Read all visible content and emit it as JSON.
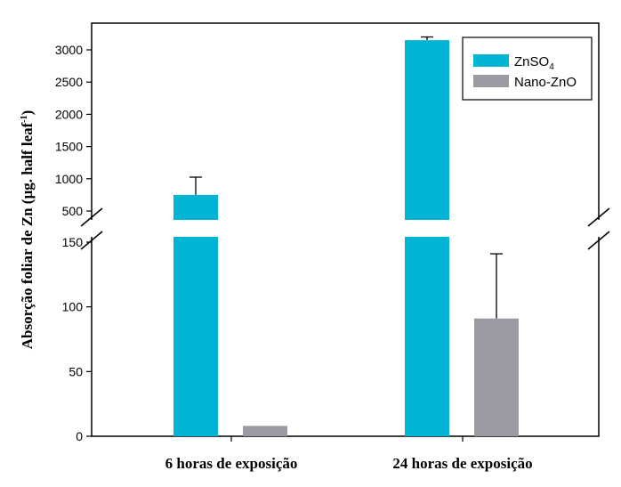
{
  "chart_data": {
    "type": "bar",
    "title": "",
    "xlabel": "",
    "ylabel": "Absorção foliar de Zn (µg. half leaf⁻¹)",
    "ylabel_main": "Absorção foliar de Zn (µg. half leaf",
    "ylabel_sup": "-1",
    "ylabel_close": ")",
    "categories": [
      "6 horas de exposição",
      "24 horas de exposição"
    ],
    "series": [
      {
        "name": "ZnSO4",
        "name_main": "ZnSO",
        "name_sub": "4",
        "color": "#00b4d4",
        "values": [
          750,
          3150
        ],
        "errors": [
          275,
          50
        ]
      },
      {
        "name": "Nano-ZnO",
        "color": "#9a9aa2",
        "values": [
          8,
          91
        ],
        "errors": [
          0,
          50
        ]
      }
    ],
    "y_axis_broken": true,
    "y_lower_range": [
      0,
      150
    ],
    "y_upper_range": [
      500,
      3200
    ],
    "y_lower_ticks": [
      0,
      50,
      100,
      150
    ],
    "y_upper_ticks": [
      500,
      1000,
      1500,
      2000,
      2500,
      3000
    ],
    "grid": false,
    "legend_position": "top-right"
  }
}
